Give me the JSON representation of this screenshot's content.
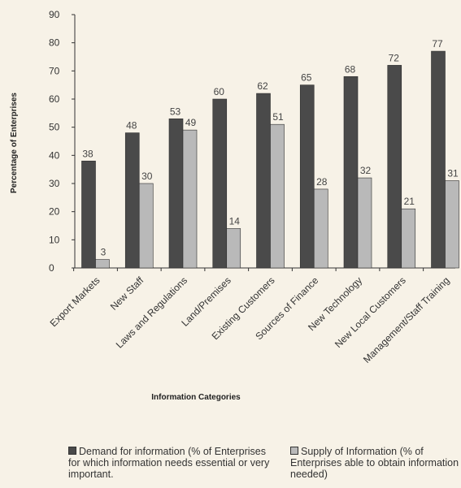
{
  "chart_data": {
    "type": "bar",
    "title": "",
    "xlabel": "Information Categories",
    "ylabel": "Percentage of Enterprises",
    "ylim": [
      0,
      90
    ],
    "yticks": [
      0,
      10,
      20,
      30,
      40,
      50,
      60,
      70,
      80,
      90
    ],
    "categories": [
      "Export Markets",
      "New Staff",
      "Laws and Regulations",
      "Land/Premises",
      "Existing Customers",
      "Sources of Finance",
      "New Technology",
      "New Local Customers",
      "Management/Staff Training"
    ],
    "series": [
      {
        "name": "Demand for information (% of Enterprises for which information needs essential or very important.",
        "color": "#4a4a4a",
        "values": [
          38,
          48,
          53,
          60,
          62,
          65,
          68,
          72,
          77
        ]
      },
      {
        "name": "Supply of Information (% of Enterprises able to obtain information needed)",
        "color": "#b9b9b9",
        "values": [
          3,
          30,
          49,
          14,
          51,
          28,
          32,
          21,
          31
        ]
      }
    ],
    "legend_position": "bottom",
    "grid": false
  }
}
